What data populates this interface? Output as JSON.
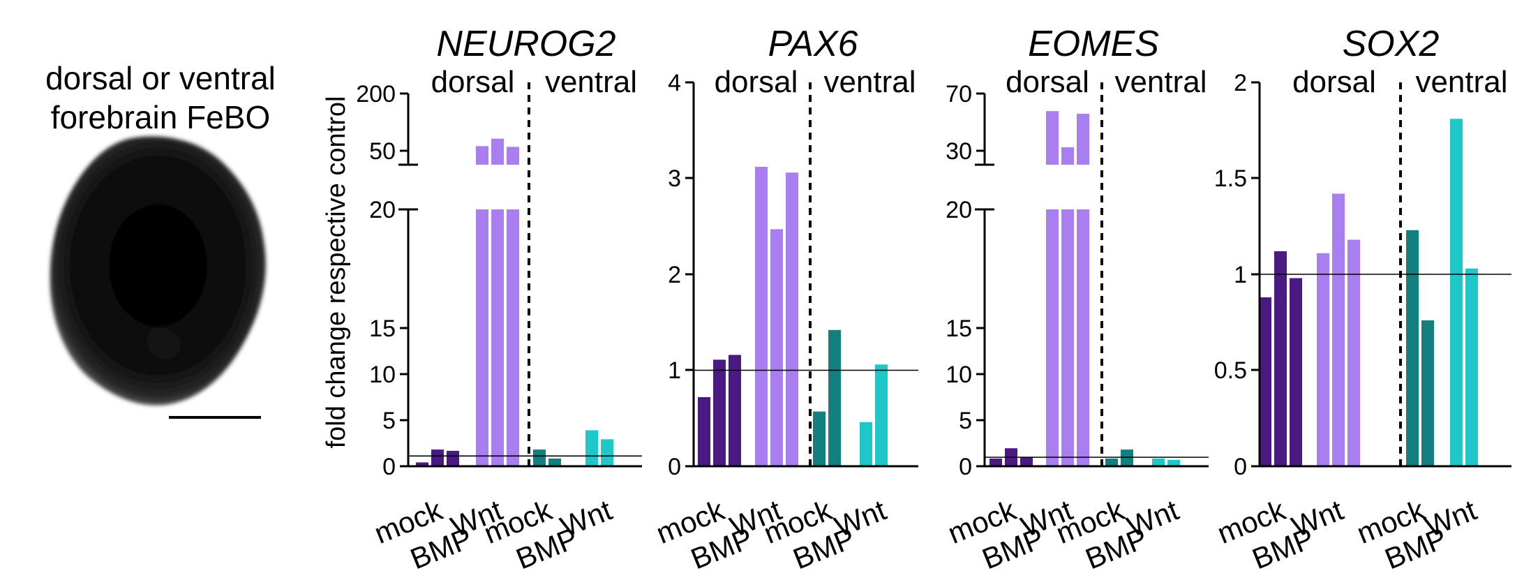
{
  "figure": {
    "image_title_line1": "dorsal or ventral",
    "image_title_line2": "forebrain FeBO",
    "y_axis_label": "fold change respective control"
  },
  "chart_data": [
    {
      "type": "bar",
      "title": "NEUROG2",
      "group_labels": [
        "dorsal",
        "ventral"
      ],
      "categories": [
        "mock",
        "BMP",
        "Wnt",
        "mock",
        "BMP",
        "Wnt"
      ],
      "series_colors": [
        "#4a1a82",
        "#a97ef0",
        "#137f7e",
        "#1fc8c8"
      ],
      "bars": [
        {
          "group": "dorsal",
          "condition": "mock",
          "values": [
            0.3,
            1.3,
            1.2
          ]
        },
        {
          "group": "dorsal",
          "condition": "Wnt",
          "values": [
            70,
            90,
            68
          ]
        },
        {
          "group": "ventral",
          "condition": "mock",
          "values": [
            1.3,
            0.6
          ]
        },
        {
          "group": "ventral",
          "condition": "Wnt",
          "values": [
            2.8,
            2.1
          ]
        }
      ],
      "reference_line": 0.8,
      "broken_axis": {
        "lower_range": [
          0,
          20
        ],
        "upper_range": [
          20,
          200
        ]
      },
      "yticks": [
        "0",
        "5",
        "10",
        "15",
        "20",
        "50",
        "200"
      ]
    },
    {
      "type": "bar",
      "title": "PAX6",
      "group_labels": [
        "dorsal",
        "ventral"
      ],
      "categories": [
        "mock",
        "BMP",
        "Wnt",
        "mock",
        "BMP",
        "Wnt"
      ],
      "series_colors": [
        "#4a1a82",
        "#a97ef0",
        "#137f7e",
        "#1fc8c8"
      ],
      "bars": [
        {
          "group": "dorsal",
          "condition": "mock",
          "values": [
            0.72,
            1.11,
            1.16
          ]
        },
        {
          "group": "dorsal",
          "condition": "Wnt",
          "values": [
            3.12,
            2.47,
            3.06
          ]
        },
        {
          "group": "ventral",
          "condition": "mock",
          "values": [
            0.57,
            1.42
          ]
        },
        {
          "group": "ventral",
          "condition": "Wnt",
          "values": [
            0.46,
            1.06
          ]
        }
      ],
      "reference_line": 1,
      "ylim": [
        0,
        4
      ],
      "yticks": [
        "0",
        "1",
        "2",
        "3",
        "4"
      ]
    },
    {
      "type": "bar",
      "title": "EOMES",
      "group_labels": [
        "dorsal",
        "ventral"
      ],
      "categories": [
        "mock",
        "BMP",
        "Wnt",
        "mock",
        "BMP",
        "Wnt"
      ],
      "series_colors": [
        "#4a1a82",
        "#a97ef0",
        "#137f7e",
        "#1fc8c8"
      ],
      "bars": [
        {
          "group": "dorsal",
          "condition": "mock",
          "values": [
            0.6,
            1.4,
            0.7
          ]
        },
        {
          "group": "dorsal",
          "condition": "Wnt",
          "values": [
            60,
            33,
            58
          ]
        },
        {
          "group": "ventral",
          "condition": "mock",
          "values": [
            0.6,
            1.3
          ]
        },
        {
          "group": "ventral",
          "condition": "Wnt",
          "values": [
            0.6,
            0.5
          ]
        }
      ],
      "reference_line": 0.7,
      "broken_axis": {
        "lower_range": [
          0,
          20
        ],
        "upper_range": [
          20,
          70
        ]
      },
      "yticks": [
        "0",
        "5",
        "10",
        "15",
        "20",
        "30",
        "70"
      ]
    },
    {
      "type": "bar",
      "title": "SOX2",
      "group_labels": [
        "dorsal",
        "ventral"
      ],
      "categories": [
        "mock",
        "BMP",
        "Wnt",
        "mock",
        "BMP",
        "Wnt"
      ],
      "series_colors": [
        "#4a1a82",
        "#a97ef0",
        "#137f7e",
        "#1fc8c8"
      ],
      "bars": [
        {
          "group": "dorsal",
          "condition": "mock",
          "values": [
            0.88,
            1.12,
            0.98
          ]
        },
        {
          "group": "dorsal",
          "condition": "Wnt",
          "values": [
            1.11,
            1.42,
            1.18
          ]
        },
        {
          "group": "ventral",
          "condition": "mock",
          "values": [
            1.23,
            0.76
          ]
        },
        {
          "group": "ventral",
          "condition": "Wnt",
          "values": [
            1.81,
            1.03
          ]
        }
      ],
      "reference_line": 1,
      "ylim": [
        0,
        2
      ],
      "yticks": [
        "0",
        "0.5",
        "1",
        "1.5",
        "2"
      ]
    }
  ]
}
